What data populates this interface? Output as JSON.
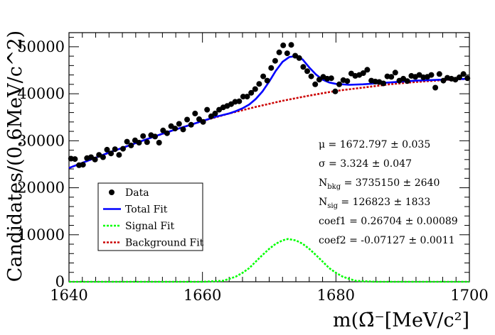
{
  "chart_data": {
    "type": "scatter",
    "title": "",
    "xlabel": "m(Ω̄⁻[MeV/c²]",
    "ylabel": "Candidates/(0.6MeV/c^2)",
    "xlim": [
      1640,
      1700
    ],
    "ylim": [
      0,
      53000
    ],
    "x_ticks": [
      1640,
      1660,
      1680,
      1700
    ],
    "y_ticks": [
      0,
      10000,
      20000,
      30000,
      40000,
      50000
    ],
    "grid": false,
    "legend": {
      "placement": "bottom-left",
      "entries": [
        {
          "label": "Data",
          "style": "marker",
          "color": "#000000"
        },
        {
          "label": "Total Fit",
          "style": "solid",
          "color": "#0000ff"
        },
        {
          "label": "Signal Fit",
          "style": "dotted",
          "color": "#00ff00"
        },
        {
          "label": "Background Fit",
          "style": "dotted",
          "color": "#cc0000"
        }
      ]
    },
    "fit_parameters": [
      {
        "name": "μ",
        "sub": "",
        "value": "1672.797",
        "error": "0.035"
      },
      {
        "name": "σ",
        "sub": "",
        "value": "3.324",
        "error": "0.047"
      },
      {
        "name": "N",
        "sub": "bkg",
        "value": "3735150",
        "error": "2640"
      },
      {
        "name": "N",
        "sub": "sig",
        "value": "126823",
        "error": "1833"
      },
      {
        "name": "coef1",
        "sub": "",
        "value": "0.26704",
        "error": "0.00089"
      },
      {
        "name": "coef2",
        "sub": "",
        "value": "-0.07127",
        "error": "0.0011"
      }
    ],
    "series": [
      {
        "name": "Data",
        "kind": "points",
        "color": "#000000",
        "x": [
          1640.3,
          1640.9,
          1641.5,
          1642.1,
          1642.7,
          1643.3,
          1643.9,
          1644.5,
          1645.1,
          1645.7,
          1646.3,
          1646.9,
          1647.5,
          1648.1,
          1648.7,
          1649.3,
          1649.9,
          1650.5,
          1651.1,
          1651.7,
          1652.3,
          1652.9,
          1653.5,
          1654.1,
          1654.7,
          1655.3,
          1655.9,
          1656.5,
          1657.1,
          1657.7,
          1658.3,
          1658.9,
          1659.5,
          1660.1,
          1660.7,
          1661.3,
          1661.9,
          1662.5,
          1663.1,
          1663.7,
          1664.3,
          1664.9,
          1665.5,
          1666.1,
          1666.7,
          1667.3,
          1667.9,
          1668.5,
          1669.1,
          1669.7,
          1670.3,
          1670.9,
          1671.5,
          1672.1,
          1672.7,
          1673.3,
          1673.9,
          1674.5,
          1675.1,
          1675.7,
          1676.3,
          1676.9,
          1677.5,
          1678.1,
          1678.7,
          1679.3,
          1679.9,
          1680.5,
          1681.1,
          1681.7,
          1682.3,
          1682.9,
          1683.5,
          1684.1,
          1684.7,
          1685.3,
          1685.9,
          1686.5,
          1687.1,
          1687.7,
          1688.3,
          1688.9,
          1689.5,
          1690.1,
          1690.7,
          1691.3,
          1691.9,
          1692.5,
          1693.1,
          1693.7,
          1694.3,
          1694.9,
          1695.5,
          1696.1,
          1696.7,
          1697.3,
          1697.9,
          1698.5,
          1699.1,
          1699.7
        ],
        "y": [
          26200,
          26100,
          24800,
          24900,
          26300,
          26500,
          26000,
          27000,
          26500,
          28100,
          27300,
          28200,
          27000,
          28300,
          29800,
          29000,
          30100,
          29600,
          31000,
          29700,
          31200,
          30900,
          29600,
          32200,
          31600,
          33100,
          32600,
          33600,
          32400,
          34500,
          33400,
          35800,
          34600,
          34000,
          36600,
          35200,
          35800,
          36600,
          37100,
          37400,
          37800,
          38300,
          38400,
          39400,
          39400,
          40200,
          41000,
          42100,
          43700,
          42800,
          45500,
          47000,
          48800,
          50300,
          48600,
          50400,
          48100,
          47600,
          45700,
          44800,
          43700,
          42000,
          43000,
          43600,
          43200,
          43300,
          40500,
          42000,
          42900,
          42700,
          44300,
          43800,
          44000,
          44400,
          45100,
          42800,
          42600,
          42500,
          42200,
          43700,
          43600,
          44500,
          42800,
          43200,
          42700,
          43800,
          43600,
          44000,
          43500,
          43600,
          44000,
          41300,
          44200,
          42800,
          43400,
          43200,
          43000,
          43500,
          44200,
          43300
        ]
      },
      {
        "name": "Total Fit",
        "kind": "line",
        "color": "#0000ff",
        "x": [
          1640,
          1642,
          1644,
          1646,
          1648,
          1650,
          1652,
          1654,
          1656,
          1658,
          1660,
          1662,
          1664,
          1665,
          1666,
          1667,
          1668,
          1669,
          1670,
          1671,
          1672,
          1673,
          1674,
          1675,
          1676,
          1677,
          1678,
          1679,
          1680,
          1682,
          1684,
          1686,
          1688,
          1690,
          1692,
          1694,
          1696,
          1698,
          1700
        ],
        "y": [
          24200,
          25300,
          26400,
          27500,
          28500,
          29500,
          30500,
          31500,
          32400,
          33300,
          34200,
          35100,
          35800,
          36300,
          36900,
          37700,
          38900,
          40500,
          42600,
          44900,
          46800,
          47800,
          48000,
          47300,
          45600,
          44100,
          43000,
          42400,
          42100,
          41900,
          42000,
          42200,
          42400,
          42600,
          42800,
          42900,
          43000,
          43100,
          43200
        ]
      },
      {
        "name": "Background Fit",
        "kind": "line",
        "color": "#cc0000",
        "x": [
          1640,
          1644,
          1648,
          1652,
          1656,
          1660,
          1664,
          1668,
          1672,
          1676,
          1680,
          1684,
          1688,
          1692,
          1696,
          1700
        ],
        "y": [
          24200,
          26400,
          28500,
          30500,
          32400,
          34200,
          35800,
          37200,
          38500,
          39600,
          40600,
          41300,
          42000,
          42500,
          42900,
          43200
        ]
      },
      {
        "name": "Signal Fit",
        "kind": "line",
        "color": "#00ff00",
        "x": [
          1640,
          1660,
          1663,
          1664,
          1665,
          1666,
          1667,
          1668,
          1669,
          1670,
          1671,
          1672,
          1672.8,
          1674,
          1675,
          1676,
          1677,
          1678,
          1679,
          1680,
          1681,
          1682,
          1683,
          1686,
          1700
        ],
        "y": [
          0,
          0,
          200,
          600,
          1100,
          1900,
          2900,
          4300,
          5700,
          7000,
          8100,
          8800,
          9100,
          8800,
          8100,
          7000,
          5700,
          4300,
          2900,
          1900,
          1100,
          600,
          200,
          0,
          0
        ]
      }
    ]
  }
}
